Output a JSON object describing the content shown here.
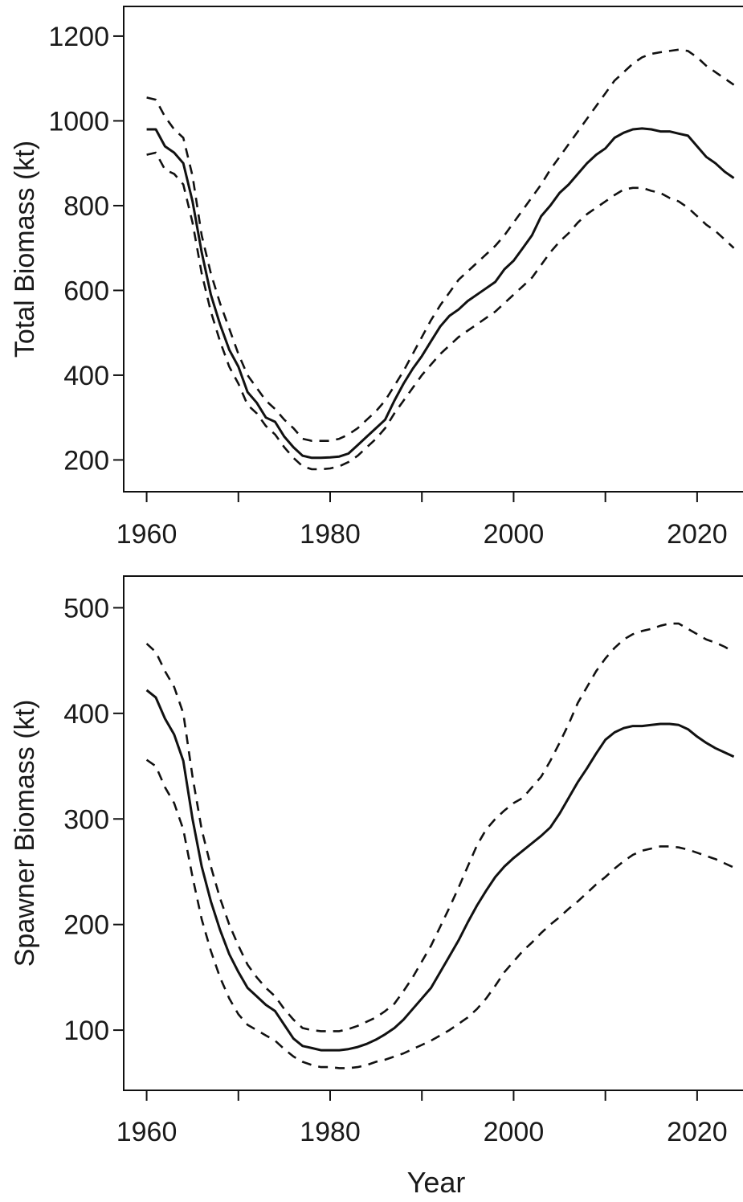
{
  "chart_data": [
    {
      "type": "line",
      "title": "",
      "xlabel": "",
      "ylabel": "Total Biomass (kt)",
      "xlim": [
        1957.5,
        2025
      ],
      "ylim": [
        125,
        1270
      ],
      "xticks": [
        1960,
        1970,
        1980,
        1990,
        2000,
        2010,
        2020
      ],
      "xtick_labels": [
        "1960",
        "",
        "1980",
        "",
        "2000",
        "",
        "2020"
      ],
      "yticks": [
        200,
        400,
        600,
        800,
        1000,
        1200
      ],
      "ytick_labels": [
        "200",
        "400",
        "600",
        "800",
        "1000",
        "1200"
      ],
      "grid": false,
      "legend": "none",
      "colors": {
        "line": "#111111"
      },
      "series": [
        {
          "style": "solid",
          "x": [
            1960,
            1961,
            1962,
            1963,
            1964,
            1965,
            1966,
            1967,
            1968,
            1969,
            1970,
            1971,
            1972,
            1973,
            1974,
            1975,
            1976,
            1977,
            1978,
            1979,
            1980,
            1981,
            1982,
            1983,
            1984,
            1985,
            1986,
            1987,
            1988,
            1989,
            1990,
            1991,
            1992,
            1993,
            1994,
            1995,
            1996,
            1997,
            1998,
            1999,
            2000,
            2001,
            2002,
            2003,
            2004,
            2005,
            2006,
            2007,
            2008,
            2009,
            2010,
            2011,
            2012,
            2013,
            2014,
            2015,
            2016,
            2017,
            2018,
            2019,
            2020,
            2021,
            2022,
            2023,
            2024
          ],
          "y": [
            980,
            980,
            940,
            925,
            900,
            810,
            690,
            590,
            520,
            460,
            420,
            360,
            335,
            300,
            290,
            255,
            230,
            210,
            205,
            205,
            206,
            208,
            215,
            235,
            255,
            275,
            295,
            340,
            380,
            415,
            445,
            480,
            515,
            540,
            555,
            575,
            590,
            605,
            620,
            650,
            670,
            700,
            730,
            775,
            800,
            830,
            850,
            875,
            900,
            920,
            935,
            960,
            972,
            980,
            982,
            980,
            975,
            975,
            970,
            965,
            940,
            915,
            900,
            880,
            865
          ]
        },
        {
          "style": "dashed",
          "x": [
            1960,
            1961,
            1962,
            1963,
            1964,
            1965,
            1966,
            1967,
            1968,
            1969,
            1970,
            1971,
            1972,
            1973,
            1974,
            1975,
            1976,
            1977,
            1978,
            1979,
            1980,
            1981,
            1982,
            1983,
            1984,
            1985,
            1986,
            1987,
            1988,
            1989,
            1990,
            1991,
            1992,
            1993,
            1994,
            1995,
            1996,
            1997,
            1998,
            1999,
            2000,
            2001,
            2002,
            2003,
            2004,
            2005,
            2006,
            2007,
            2008,
            2009,
            2010,
            2011,
            2012,
            2013,
            2014,
            2015,
            2016,
            2017,
            2018,
            2019,
            2020,
            2021,
            2022,
            2023,
            2024
          ],
          "y": [
            1055,
            1050,
            1010,
            980,
            960,
            870,
            730,
            640,
            570,
            510,
            450,
            400,
            370,
            340,
            320,
            295,
            275,
            250,
            245,
            245,
            245,
            250,
            260,
            275,
            295,
            315,
            340,
            375,
            410,
            450,
            490,
            530,
            565,
            595,
            625,
            645,
            665,
            685,
            705,
            730,
            760,
            790,
            820,
            850,
            885,
            915,
            945,
            975,
            1005,
            1035,
            1065,
            1095,
            1115,
            1135,
            1150,
            1158,
            1162,
            1165,
            1168,
            1165,
            1150,
            1130,
            1115,
            1100,
            1085
          ]
        },
        {
          "style": "dashed",
          "x": [
            1960,
            1961,
            1962,
            1963,
            1964,
            1965,
            1966,
            1967,
            1968,
            1969,
            1970,
            1971,
            1972,
            1973,
            1974,
            1975,
            1976,
            1977,
            1978,
            1979,
            1980,
            1981,
            1982,
            1983,
            1984,
            1985,
            1986,
            1987,
            1988,
            1989,
            1990,
            1991,
            1992,
            1993,
            1994,
            1995,
            1996,
            1997,
            1998,
            1999,
            2000,
            2001,
            2002,
            2003,
            2004,
            2005,
            2006,
            2007,
            2008,
            2009,
            2010,
            2011,
            2012,
            2013,
            2014,
            2015,
            2016,
            2017,
            2018,
            2019,
            2020,
            2021,
            2022,
            2023,
            2024
          ],
          "y": [
            920,
            925,
            885,
            875,
            850,
            760,
            640,
            550,
            480,
            420,
            380,
            330,
            310,
            280,
            260,
            230,
            205,
            185,
            178,
            178,
            180,
            185,
            195,
            210,
            230,
            250,
            275,
            310,
            340,
            370,
            400,
            425,
            450,
            470,
            490,
            505,
            520,
            535,
            550,
            570,
            590,
            610,
            630,
            660,
            690,
            715,
            735,
            760,
            780,
            795,
            810,
            825,
            838,
            842,
            842,
            835,
            830,
            818,
            810,
            795,
            775,
            755,
            740,
            720,
            700
          ]
        }
      ]
    },
    {
      "type": "line",
      "title": "",
      "xlabel": "Year",
      "ylabel": "Spawner Biomass (kt)",
      "xlim": [
        1957.5,
        2025
      ],
      "ylim": [
        43,
        530
      ],
      "xticks": [
        1960,
        1970,
        1980,
        1990,
        2000,
        2010,
        2020
      ],
      "xtick_labels": [
        "1960",
        "",
        "1980",
        "",
        "2000",
        "",
        "2020"
      ],
      "yticks": [
        100,
        200,
        300,
        400,
        500
      ],
      "ytick_labels": [
        "100",
        "200",
        "300",
        "400",
        "500"
      ],
      "grid": false,
      "legend": "none",
      "colors": {
        "line": "#111111"
      },
      "series": [
        {
          "style": "solid",
          "x": [
            1960,
            1961,
            1962,
            1963,
            1964,
            1965,
            1966,
            1967,
            1968,
            1969,
            1970,
            1971,
            1972,
            1973,
            1974,
            1975,
            1976,
            1977,
            1978,
            1979,
            1980,
            1981,
            1982,
            1983,
            1984,
            1985,
            1986,
            1987,
            1988,
            1989,
            1990,
            1991,
            1992,
            1993,
            1994,
            1995,
            1996,
            1997,
            1998,
            1999,
            2000,
            2001,
            2002,
            2003,
            2004,
            2005,
            2006,
            2007,
            2008,
            2009,
            2010,
            2011,
            2012,
            2013,
            2014,
            2015,
            2016,
            2017,
            2018,
            2019,
            2020,
            2021,
            2022,
            2023,
            2024
          ],
          "y": [
            422,
            415,
            395,
            380,
            355,
            300,
            255,
            222,
            195,
            172,
            155,
            140,
            132,
            124,
            118,
            105,
            92,
            85,
            83,
            81,
            81,
            81,
            82,
            84,
            87,
            91,
            96,
            102,
            110,
            120,
            130,
            140,
            155,
            170,
            185,
            202,
            218,
            232,
            245,
            255,
            263,
            270,
            277,
            284,
            292,
            305,
            320,
            335,
            348,
            362,
            375,
            382,
            386,
            388,
            388,
            389,
            390,
            390,
            389,
            385,
            378,
            372,
            367,
            363,
            359
          ]
        },
        {
          "style": "dashed",
          "x": [
            1960,
            1961,
            1962,
            1963,
            1964,
            1965,
            1966,
            1967,
            1968,
            1969,
            1970,
            1971,
            1972,
            1973,
            1974,
            1975,
            1976,
            1977,
            1978,
            1979,
            1980,
            1981,
            1982,
            1983,
            1984,
            1985,
            1986,
            1987,
            1988,
            1989,
            1990,
            1991,
            1992,
            1993,
            1994,
            1995,
            1996,
            1997,
            1998,
            1999,
            2000,
            2001,
            2002,
            2003,
            2004,
            2005,
            2006,
            2007,
            2008,
            2009,
            2010,
            2011,
            2012,
            2013,
            2014,
            2015,
            2016,
            2017,
            2018,
            2019,
            2020,
            2021,
            2022,
            2023,
            2024
          ],
          "y": [
            466,
            458,
            440,
            425,
            400,
            340,
            290,
            255,
            225,
            200,
            180,
            162,
            150,
            140,
            132,
            120,
            110,
            102,
            100,
            99,
            99,
            99,
            101,
            104,
            108,
            112,
            118,
            125,
            137,
            150,
            165,
            180,
            198,
            216,
            235,
            255,
            275,
            290,
            300,
            308,
            315,
            320,
            330,
            340,
            355,
            372,
            390,
            410,
            425,
            440,
            452,
            462,
            470,
            475,
            478,
            480,
            483,
            485,
            485,
            480,
            475,
            470,
            467,
            463,
            458
          ]
        },
        {
          "style": "dashed",
          "x": [
            1960,
            1961,
            1962,
            1963,
            1964,
            1965,
            1966,
            1967,
            1968,
            1969,
            1970,
            1971,
            1972,
            1973,
            1974,
            1975,
            1976,
            1977,
            1978,
            1979,
            1980,
            1981,
            1982,
            1983,
            1984,
            1985,
            1986,
            1987,
            1988,
            1989,
            1990,
            1991,
            1992,
            1993,
            1994,
            1995,
            1996,
            1997,
            1998,
            1999,
            2000,
            2001,
            2002,
            2003,
            2004,
            2005,
            2006,
            2007,
            2008,
            2009,
            2010,
            2011,
            2012,
            2013,
            2014,
            2015,
            2016,
            2017,
            2018,
            2019,
            2020,
            2021,
            2022,
            2023,
            2024
          ],
          "y": [
            356,
            350,
            330,
            315,
            290,
            245,
            205,
            175,
            150,
            130,
            115,
            105,
            100,
            95,
            90,
            82,
            75,
            70,
            67,
            65,
            65,
            64,
            64,
            65,
            67,
            70,
            72,
            75,
            78,
            82,
            86,
            90,
            95,
            100,
            106,
            112,
            120,
            130,
            142,
            155,
            165,
            175,
            183,
            192,
            200,
            207,
            215,
            222,
            230,
            238,
            245,
            253,
            260,
            266,
            270,
            272,
            274,
            274,
            273,
            271,
            268,
            265,
            262,
            258,
            254
          ]
        }
      ]
    }
  ]
}
